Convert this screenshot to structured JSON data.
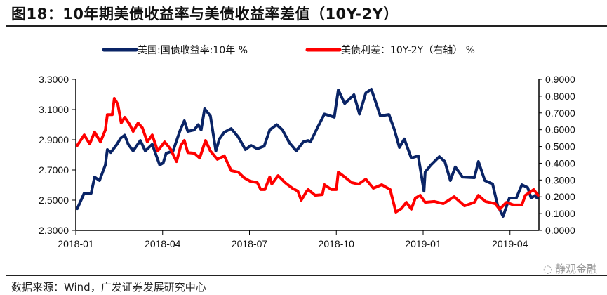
{
  "title": "图18：10年期美债收益率与美债收益率差值（10Y-2Y）",
  "source": "数据来源：Wind，广发证券发展研究中心",
  "watermark": "静观金融",
  "chart_data": {
    "type": "line",
    "title": "图18：10年期美债收益率与美债收益率差值（10Y-2Y）",
    "x_unit": "months since 2018-01",
    "xlim": [
      0,
      16
    ],
    "x_ticks": [
      {
        "x": 0,
        "label": "2018-01"
      },
      {
        "x": 3,
        "label": "2018-04"
      },
      {
        "x": 6,
        "label": "2018-07"
      },
      {
        "x": 9,
        "label": "2018-10"
      },
      {
        "x": 12,
        "label": "2019-01"
      },
      {
        "x": 15,
        "label": "2019-04"
      }
    ],
    "y_left": {
      "lim": [
        2.3,
        3.3
      ],
      "ticks": [
        "2.3000",
        "2.5000",
        "2.7000",
        "2.9000",
        "3.1000",
        "3.3000"
      ]
    },
    "y_right": {
      "lim": [
        0,
        0.9
      ],
      "ticks": [
        "0.0000",
        "0.1000",
        "0.2000",
        "0.3000",
        "0.4000",
        "0.5000",
        "0.6000",
        "0.7000",
        "0.8000",
        "0.9000"
      ]
    },
    "legend_position": "top-center",
    "series": [
      {
        "name": "美国:国债收益率:10年 %",
        "axis": "left",
        "color": "#0a2466",
        "x": [
          0.05,
          0.29,
          0.53,
          0.65,
          0.82,
          1.02,
          1.09,
          1.21,
          1.43,
          1.55,
          1.69,
          1.81,
          1.98,
          2.23,
          2.4,
          2.64,
          2.9,
          3.02,
          3.12,
          3.36,
          3.61,
          3.75,
          3.87,
          4.09,
          4.23,
          4.33,
          4.45,
          4.65,
          4.84,
          4.96,
          5.13,
          5.37,
          5.61,
          5.86,
          6.05,
          6.27,
          6.51,
          6.7,
          6.94,
          7.14,
          7.38,
          7.62,
          7.86,
          8.03,
          8.11,
          8.35,
          8.59,
          8.93,
          9.07,
          9.29,
          9.61,
          9.8,
          10.02,
          10.21,
          10.52,
          10.82,
          11.01,
          11.18,
          11.35,
          11.59,
          11.83,
          12.03,
          12.07,
          12.27,
          12.56,
          12.75,
          12.94,
          13.11,
          13.36,
          13.77,
          13.91,
          14.13,
          14.4,
          14.57,
          14.76,
          14.98,
          15.22,
          15.41,
          15.61,
          15.73,
          15.85,
          15.94
        ],
        "y": [
          2.444,
          2.546,
          2.546,
          2.653,
          2.63,
          2.733,
          2.835,
          2.816,
          2.872,
          2.91,
          2.93,
          2.87,
          2.826,
          2.895,
          2.826,
          2.87,
          2.733,
          2.747,
          2.81,
          2.826,
          2.965,
          3.026,
          2.956,
          2.965,
          3.0,
          2.965,
          3.105,
          3.058,
          2.826,
          2.905,
          2.95,
          2.974,
          2.919,
          2.835,
          2.863,
          2.84,
          2.858,
          2.965,
          3.0,
          2.965,
          2.88,
          2.826,
          2.886,
          2.895,
          2.886,
          2.98,
          3.07,
          3.05,
          3.23,
          3.14,
          3.198,
          3.07,
          3.21,
          3.235,
          3.058,
          3.067,
          2.965,
          2.849,
          2.905,
          2.779,
          2.793,
          2.56,
          2.686,
          2.733,
          2.788,
          2.756,
          2.63,
          2.72,
          2.653,
          2.649,
          2.756,
          2.63,
          2.607,
          2.467,
          2.393,
          2.514,
          2.514,
          2.602,
          2.584,
          2.514,
          2.53,
          2.514
        ]
      },
      {
        "name": "美债利差：10Y-2Y（右轴） %",
        "axis": "right",
        "color": "#ff0000",
        "x": [
          0.05,
          0.29,
          0.48,
          0.65,
          0.85,
          1.02,
          1.09,
          1.26,
          1.33,
          1.45,
          1.57,
          1.69,
          1.86,
          1.98,
          2.15,
          2.3,
          2.47,
          2.64,
          2.83,
          3.07,
          3.27,
          3.48,
          3.63,
          3.75,
          3.87,
          4.09,
          4.28,
          4.48,
          4.65,
          4.89,
          5.13,
          5.37,
          5.61,
          5.81,
          6.02,
          6.27,
          6.39,
          6.53,
          6.7,
          6.77,
          6.99,
          7.23,
          7.48,
          7.67,
          7.79,
          7.98,
          8.03,
          8.27,
          8.52,
          8.59,
          8.83,
          9.0,
          9.07,
          9.29,
          9.53,
          9.77,
          10.02,
          10.28,
          10.57,
          10.86,
          11.06,
          11.25,
          11.42,
          11.59,
          11.73,
          11.9,
          12.07,
          12.39,
          12.7,
          13.07,
          13.43,
          13.77,
          13.91,
          14.15,
          14.49,
          14.64,
          14.88,
          15.12,
          15.41,
          15.53,
          15.82,
          15.97
        ],
        "y": [
          0.506,
          0.569,
          0.515,
          0.586,
          0.527,
          0.598,
          0.69,
          0.69,
          0.787,
          0.753,
          0.64,
          0.674,
          0.632,
          0.59,
          0.64,
          0.611,
          0.527,
          0.569,
          0.473,
          0.527,
          0.485,
          0.41,
          0.506,
          0.536,
          0.464,
          0.46,
          0.431,
          0.536,
          0.473,
          0.423,
          0.444,
          0.356,
          0.347,
          0.314,
          0.293,
          0.285,
          0.243,
          0.243,
          0.318,
          0.276,
          0.326,
          0.285,
          0.251,
          0.234,
          0.18,
          0.234,
          0.243,
          0.209,
          0.213,
          0.272,
          0.243,
          0.243,
          0.347,
          0.318,
          0.285,
          0.276,
          0.305,
          0.251,
          0.272,
          0.243,
          0.109,
          0.13,
          0.167,
          0.126,
          0.192,
          0.209,
          0.167,
          0.172,
          0.159,
          0.201,
          0.146,
          0.167,
          0.209,
          0.172,
          0.159,
          0.126,
          0.167,
          0.151,
          0.151,
          0.209,
          0.243,
          0.209
        ]
      }
    ]
  }
}
